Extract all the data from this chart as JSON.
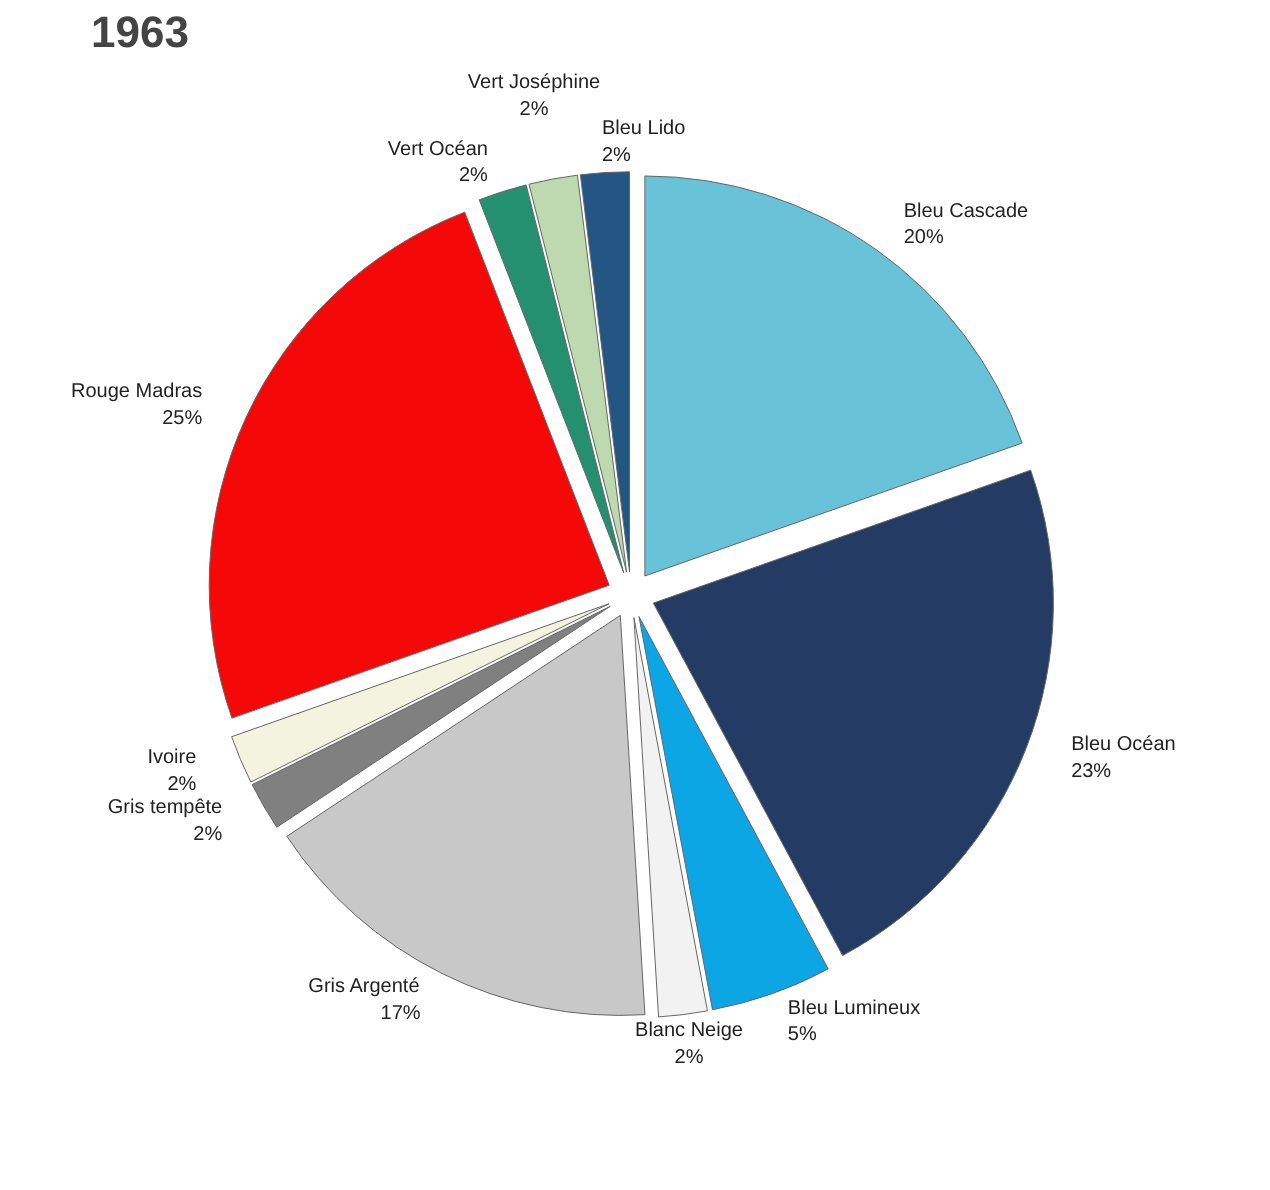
{
  "chart_data": {
    "type": "pie",
    "title": "1963",
    "categories": [
      "Bleu Cascade",
      "Bleu Océan",
      "Bleu Lumineux",
      "Blanc Neige",
      "Gris Argenté",
      "Gris tempête",
      "Ivoire",
      "Rouge Madras",
      "Vert Océan",
      "Vert Joséphine",
      "Bleu Lido"
    ],
    "values": [
      20,
      23,
      5,
      2,
      17,
      2,
      2,
      25,
      2,
      2,
      2
    ],
    "value_labels": [
      "20%",
      "23%",
      "5%",
      "2%",
      "17%",
      "2%",
      "2%",
      "25%",
      "2%",
      "2%",
      "2%"
    ],
    "colors": [
      "#68c2d8",
      "#243b64",
      "#0ba6e3",
      "#f2f2f2",
      "#c9c8c9",
      "#808080",
      "#f3f3e0",
      "#f50808",
      "#259070",
      "#bcd9b0",
      "#245684"
    ]
  }
}
